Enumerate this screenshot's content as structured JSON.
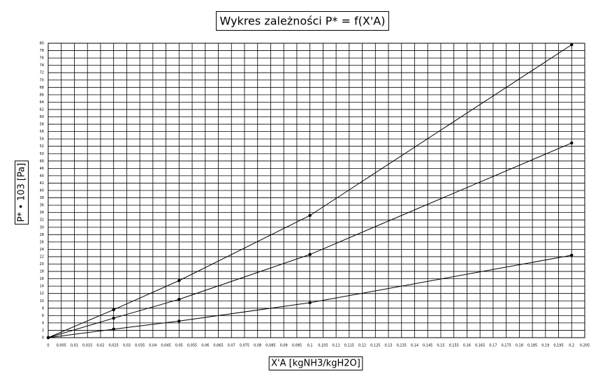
{
  "chart_data": {
    "type": "line",
    "title": "Wykres zależności P* = f(X'A)",
    "x_label": "X'A [kgNH3/kgH2O]",
    "y_label": "P* • 103 [Pa]",
    "x": [
      0,
      0.025,
      0.05,
      0.1,
      0.2
    ],
    "series": [
      {
        "color": "#000000",
        "values": [
          0,
          7.6,
          15.5,
          33.2,
          79.6
        ]
      },
      {
        "color": "#000000",
        "values": [
          0,
          5.3,
          10.4,
          22.6,
          52.9
        ]
      },
      {
        "color": "#000000",
        "values": [
          0,
          2.3,
          4.5,
          9.5,
          22.4
        ]
      }
    ],
    "xlim": [
      0,
      0.205
    ],
    "xticks": [
      0,
      {
        "value": 0.005,
        "label": "0,005"
      },
      {
        "value": 0.01,
        "label": "0,01"
      },
      {
        "value": 0.015,
        "label": "0,015"
      },
      {
        "value": 0.02,
        "label": "0,02"
      },
      {
        "value": 0.025,
        "label": "0,025"
      },
      {
        "value": 0.03,
        "label": "0,03"
      },
      {
        "value": 0.035,
        "label": "0,035"
      },
      {
        "value": 0.04,
        "label": "0,04"
      },
      {
        "value": 0.045,
        "label": "0,045"
      },
      {
        "value": 0.05,
        "label": "0,05"
      },
      {
        "value": 0.055,
        "label": "0,055"
      },
      {
        "value": 0.06,
        "label": "0,06"
      },
      {
        "value": 0.065,
        "label": "0,065"
      },
      {
        "value": 0.07,
        "label": "0,07"
      },
      {
        "value": 0.075,
        "label": "0,075"
      },
      {
        "value": 0.08,
        "label": "0,08"
      },
      {
        "value": 0.085,
        "label": "0,085"
      },
      {
        "value": 0.09,
        "label": "0,09"
      },
      {
        "value": 0.095,
        "label": "0,095"
      },
      {
        "value": 0.1,
        "label": "0,1"
      },
      {
        "value": 0.105,
        "label": "0,105"
      },
      {
        "value": 0.11,
        "label": "0,11"
      },
      {
        "value": 0.115,
        "label": "0,115"
      },
      {
        "value": 0.12,
        "label": "0,12"
      },
      {
        "value": 0.125,
        "label": "0,125"
      },
      {
        "value": 0.13,
        "label": "0,13"
      },
      {
        "value": 0.135,
        "label": "0,135"
      },
      {
        "value": 0.14,
        "label": "0,14"
      },
      {
        "value": 0.145,
        "label": "0,145"
      },
      {
        "value": 0.15,
        "label": "0,15"
      },
      {
        "value": 0.155,
        "label": "0,155"
      },
      {
        "value": 0.16,
        "label": "0,16"
      },
      {
        "value": 0.165,
        "label": "0,165"
      },
      {
        "value": 0.17,
        "label": "0,17"
      },
      {
        "value": 0.175,
        "label": "0,175"
      },
      {
        "value": 0.18,
        "label": "0,18"
      },
      {
        "value": 0.185,
        "label": "0,185"
      },
      {
        "value": 0.19,
        "label": "0,19"
      },
      {
        "value": 0.195,
        "label": "0,195"
      },
      {
        "value": 0.2,
        "label": "0,2"
      },
      {
        "value": 0.205,
        "label": "0,205"
      }
    ],
    "ylim": [
      0,
      80
    ],
    "yticks": [
      0,
      2,
      4,
      6,
      8,
      10,
      12,
      14,
      16,
      18,
      20,
      22,
      24,
      26,
      28,
      30,
      32,
      34,
      36,
      38,
      40,
      42,
      44,
      46,
      48,
      50,
      52,
      54,
      56,
      58,
      60,
      62,
      64,
      66,
      68,
      70,
      72,
      74,
      76,
      78,
      80
    ],
    "grid": true
  }
}
